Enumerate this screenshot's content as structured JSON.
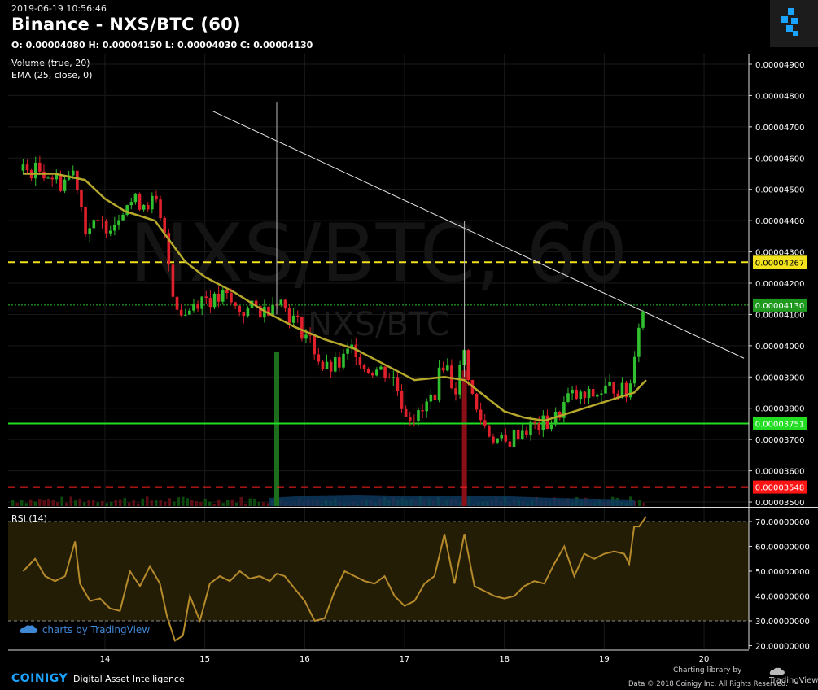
{
  "header": {
    "timestamp": "2019-06-19 10:56:46",
    "title": "Binance - NXS/BTC (60)",
    "ohlc": "O: 0.00004080 H: 0.00004150 L: 0.00004030 C: 0.00004130"
  },
  "indicators": {
    "volume": "Volume (true, 20)",
    "ema": "EMA (25, close, 0)",
    "rsi": "RSI (14)"
  },
  "watermark": {
    "big": "NXS/BTC, 60",
    "small": "NXS/BTC"
  },
  "footer": {
    "tv_link": "charts by TradingView",
    "brand": "COINIGY",
    "tagline": "Digital Asset Intelligence",
    "charting": "Charting library by",
    "tv_name": "TradingView",
    "copyright": "Data © 2018  Coinigy Inc. All Rights Reserved."
  },
  "colors": {
    "up": "#2fbf2f",
    "down": "#e0202a",
    "ema": "#b5a82a",
    "rsi": "#b58a2a",
    "resistance": "#f2e21c",
    "support": "#22dd22",
    "stop": "#ff2020",
    "last": "#2fbf2f"
  },
  "chart_data": [
    {
      "type": "line",
      "title": "Binance - NXS/BTC (60)",
      "x_ticks": [
        "14",
        "15",
        "16",
        "17",
        "18",
        "19",
        "20"
      ],
      "y_ticks": [
        "0.00004900",
        "0.00004800",
        "0.00004700",
        "0.00004600",
        "0.00004500",
        "0.00004400",
        "0.00004300",
        "0.00004200",
        "0.00004100",
        "0.00004000",
        "0.00003900",
        "0.00003800",
        "0.00003700",
        "0.00003600",
        "0.00003500"
      ],
      "ylim": [
        3.49e-05,
        4.93e-05
      ],
      "price_path": [
        [
          13.18,
          4.56e-05
        ],
        [
          13.4,
          4.56e-05
        ],
        [
          13.55,
          4.52e-05
        ],
        [
          13.7,
          4.56e-05
        ],
        [
          13.8,
          4.38e-05
        ],
        [
          13.95,
          4.38e-05
        ],
        [
          14.1,
          4.4e-05
        ],
        [
          14.2,
          4.46e-05
        ],
        [
          14.4,
          4.46e-05
        ],
        [
          14.5,
          4.46e-05
        ],
        [
          14.6,
          4.34e-05
        ],
        [
          14.7,
          4.14e-05
        ],
        [
          14.8,
          4.1e-05
        ],
        [
          14.9,
          4.14e-05
        ],
        [
          15.0,
          4.16e-05
        ],
        [
          15.1,
          4.14e-05
        ],
        [
          15.2,
          4.16e-05
        ],
        [
          15.3,
          4.12e-05
        ],
        [
          15.4,
          4.11e-05
        ],
        [
          15.5,
          4.12e-05
        ],
        [
          15.6,
          4.11e-05
        ],
        [
          15.72,
          4.16e-05
        ],
        [
          15.85,
          4.1e-05
        ],
        [
          15.95,
          4.06e-05
        ],
        [
          16.05,
          4.02e-05
        ],
        [
          16.2,
          3.92e-05
        ],
        [
          16.35,
          3.94e-05
        ],
        [
          16.5,
          4e-05
        ],
        [
          16.6,
          3.93e-05
        ],
        [
          16.8,
          3.92e-05
        ],
        [
          16.9,
          3.89e-05
        ],
        [
          17.0,
          3.79e-05
        ],
        [
          17.15,
          3.77e-05
        ],
        [
          17.3,
          3.85e-05
        ],
        [
          17.4,
          3.96e-05
        ],
        [
          17.5,
          3.85e-05
        ],
        [
          17.6,
          3.98e-05
        ],
        [
          17.7,
          3.8e-05
        ],
        [
          17.85,
          3.72e-05
        ],
        [
          18.0,
          3.68e-05
        ],
        [
          18.15,
          3.73e-05
        ],
        [
          18.3,
          3.74e-05
        ],
        [
          18.5,
          3.76e-05
        ],
        [
          18.65,
          3.84e-05
        ],
        [
          18.8,
          3.83e-05
        ],
        [
          18.95,
          3.85e-05
        ],
        [
          19.1,
          3.87e-05
        ],
        [
          19.25,
          3.84e-05
        ],
        [
          19.33,
          4.06e-05
        ],
        [
          19.42,
          4.13e-05
        ]
      ],
      "series": [
        {
          "name": "EMA (25, close, 0)",
          "x": [
            13.18,
            13.5,
            13.8,
            14.0,
            14.2,
            14.5,
            14.8,
            15.0,
            15.3,
            15.6,
            15.9,
            16.2,
            16.5,
            16.8,
            17.1,
            17.4,
            17.6,
            17.8,
            18.0,
            18.2,
            18.4,
            18.6,
            18.8,
            19.0,
            19.2,
            19.3,
            19.42
          ],
          "values": [
            4.55e-05,
            4.55e-05,
            4.53e-05,
            4.47e-05,
            4.43e-05,
            4.4e-05,
            4.27e-05,
            4.22e-05,
            4.17e-05,
            4.11e-05,
            4.06e-05,
            4.02e-05,
            3.99e-05,
            3.94e-05,
            3.89e-05,
            3.9e-05,
            3.89e-05,
            3.84e-05,
            3.79e-05,
            3.77e-05,
            3.76e-05,
            3.78e-05,
            3.8e-05,
            3.82e-05,
            3.84e-05,
            3.85e-05,
            3.89e-05
          ]
        }
      ],
      "horizontal_levels": [
        {
          "label": "0.00004267",
          "value": 4.267e-05,
          "style": "dashed",
          "color": "#f2e21c"
        },
        {
          "label": "0.00004130",
          "value": 4.13e-05,
          "style": "dotted",
          "color": "#2fbf2f"
        },
        {
          "label": "0.00003751",
          "value": 3.751e-05,
          "style": "solid",
          "color": "#22dd22"
        },
        {
          "label": "0.00003548",
          "value": 3.548e-05,
          "style": "dashed",
          "color": "#ff2020"
        }
      ],
      "trendline": {
        "from": [
          15.08,
          4.75e-05
        ],
        "to": [
          20.4,
          3.96e-05
        ]
      },
      "volume_spikes": [
        {
          "x": 15.72,
          "direction": "up",
          "level": 0.34
        },
        {
          "x": 17.6,
          "direction": "down",
          "level": 0.3
        }
      ]
    },
    {
      "type": "line",
      "title": "RSI (14)",
      "y_ticks": [
        "70.00000000",
        "60.00000000",
        "50.00000000",
        "40.00000000",
        "30.00000000",
        "20.00000000"
      ],
      "ylim": [
        20,
        74
      ],
      "bands": [
        30,
        70
      ],
      "series": [
        {
          "name": "RSI (14)",
          "x": [
            13.18,
            13.3,
            13.4,
            13.5,
            13.6,
            13.7,
            13.75,
            13.85,
            13.95,
            14.05,
            14.15,
            14.25,
            14.35,
            14.45,
            14.55,
            14.62,
            14.7,
            14.78,
            14.85,
            14.95,
            15.05,
            15.15,
            15.25,
            15.35,
            15.45,
            15.55,
            15.65,
            15.72,
            15.8,
            15.9,
            16.0,
            16.1,
            16.2,
            16.3,
            16.4,
            16.5,
            16.6,
            16.7,
            16.8,
            16.9,
            17.0,
            17.1,
            17.2,
            17.3,
            17.4,
            17.5,
            17.6,
            17.7,
            17.8,
            17.9,
            18.0,
            18.1,
            18.2,
            18.3,
            18.4,
            18.5,
            18.6,
            18.7,
            18.8,
            18.9,
            19.0,
            19.1,
            19.2,
            19.25,
            19.3,
            19.35,
            19.42
          ],
          "values": [
            50,
            55,
            48,
            46,
            48,
            62,
            45,
            38,
            39,
            35,
            34,
            50,
            44,
            52,
            45,
            32,
            22,
            24,
            40,
            30,
            45,
            48,
            46,
            50,
            47,
            48,
            46,
            49,
            48,
            43,
            38,
            30,
            31,
            42,
            50,
            48,
            46,
            45,
            48,
            40,
            36,
            38,
            45,
            48,
            65,
            45,
            65,
            44,
            42,
            40,
            39,
            40,
            44,
            46,
            45,
            53,
            60,
            48,
            57,
            55,
            57,
            58,
            57,
            53,
            68,
            68,
            72
          ]
        }
      ]
    }
  ]
}
